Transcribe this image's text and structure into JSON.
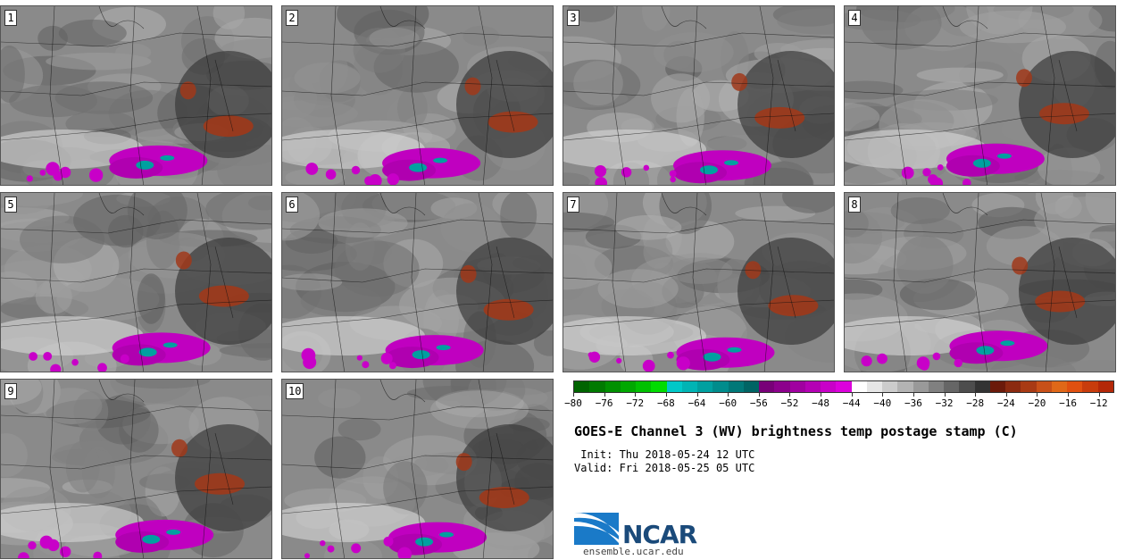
{
  "panels": [
    {
      "number": "1"
    },
    {
      "number": "2"
    },
    {
      "number": "3"
    },
    {
      "number": "4"
    },
    {
      "number": "5"
    },
    {
      "number": "6"
    },
    {
      "number": "7"
    },
    {
      "number": "8"
    },
    {
      "number": "9"
    },
    {
      "number": "10"
    }
  ],
  "colorbar": {
    "min": -80,
    "max": -10,
    "step": 2,
    "ticks": [
      -80,
      -76,
      -72,
      -68,
      -64,
      -60,
      -56,
      -52,
      -48,
      -44,
      -40,
      -36,
      -32,
      -28,
      -24,
      -20,
      -16,
      -12
    ],
    "tick_labels": [
      "−80",
      "−76",
      "−72",
      "−68",
      "−64",
      "−60",
      "−56",
      "−52",
      "−48",
      "−44",
      "−40",
      "−36",
      "−32",
      "−28",
      "−24",
      "−20",
      "−16",
      "−12"
    ],
    "colors": [
      "#006400",
      "#007a00",
      "#009000",
      "#00a800",
      "#00c000",
      "#00dc00",
      "#00c8c8",
      "#00b4b4",
      "#00a0a0",
      "#008c8c",
      "#007878",
      "#006464",
      "#780078",
      "#8c008c",
      "#a000a0",
      "#b400b4",
      "#c800c8",
      "#dc00dc",
      "#ffffff",
      "#e6e6e6",
      "#cccccc",
      "#b3b3b3",
      "#999999",
      "#808080",
      "#666666",
      "#4d4d4d",
      "#333333",
      "#6b1a0a",
      "#8b2a10",
      "#a83a14",
      "#c85018",
      "#e06818",
      "#e05010",
      "#c83c0c",
      "#b42808"
    ]
  },
  "title": "GOES-E Channel 3 (WV) brightness temp postage stamp (C)",
  "init": " Init: Thu 2018-05-24 12 UTC",
  "valid": "Valid: Fri 2018-05-25 05 UTC",
  "logo": {
    "name": "NCAR",
    "url": "ensemble.ucar.edu"
  }
}
